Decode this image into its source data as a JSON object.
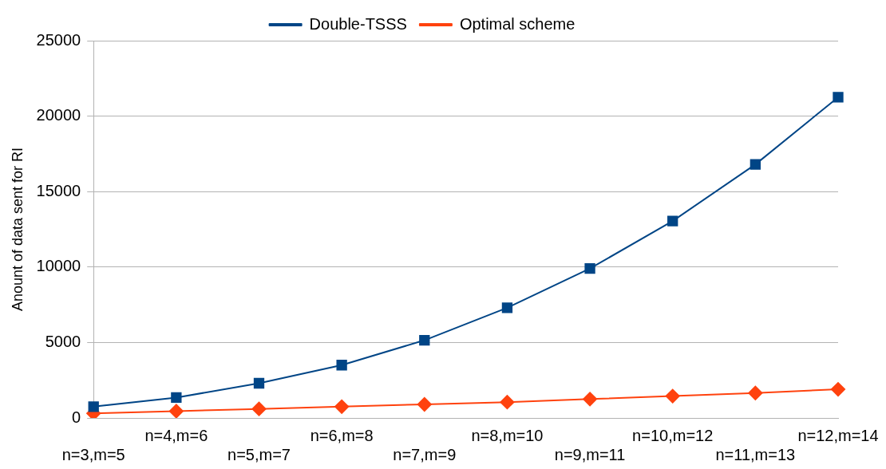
{
  "chart_data": {
    "type": "line",
    "ylabel": "Anount of data sent for RI",
    "categories": [
      "n=3,m=5",
      "n=4,m=6",
      "n=5,m=7",
      "n=6,m=8",
      "n=7,m=9",
      "n=8,m=10",
      "n=9,m=11",
      "n=10,m=12",
      "n=11,m=13",
      "n=12,m=14"
    ],
    "series": [
      {
        "name": "Double-TSSS",
        "color": "#004586",
        "marker": "square",
        "values": [
          750,
          1350,
          2300,
          3500,
          5150,
          7300,
          9900,
          13050,
          16800,
          21250
        ]
      },
      {
        "name": "Optimal scheme",
        "color": "#ff420e",
        "marker": "diamond",
        "values": [
          300,
          450,
          600,
          750,
          900,
          1050,
          1250,
          1450,
          1650,
          1900
        ]
      }
    ],
    "ylim": [
      0,
      25000
    ],
    "yticks": [
      0,
      5000,
      10000,
      15000,
      20000,
      25000
    ],
    "grid": "y",
    "legend": "top"
  }
}
